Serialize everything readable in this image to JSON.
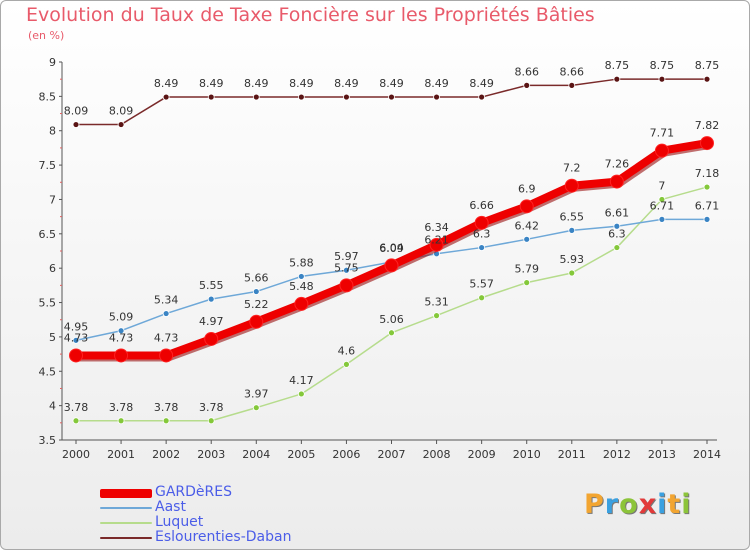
{
  "title": "Evolution du Taux de Taxe Foncière sur les Propriétés Bâties",
  "subtitle": "(en %)",
  "logo": {
    "text": "Proxiti",
    "letters": [
      {
        "ch": "P",
        "color": "#f2a531"
      },
      {
        "ch": "r",
        "color": "#3aa0e0"
      },
      {
        "ch": "o",
        "color": "#8cc43a"
      },
      {
        "ch": "x",
        "color": "#e23a3a"
      },
      {
        "ch": "i",
        "color": "#3aa0e0"
      },
      {
        "ch": "t",
        "color": "#f2a531"
      },
      {
        "ch": "i",
        "color": "#8cc43a"
      }
    ]
  },
  "chart_data": {
    "type": "line",
    "title": "Evolution du Taux de Taxe Foncière sur les Propriétés Bâties",
    "ylabel": "(en %)",
    "xlabel": "",
    "x": [
      2000,
      2001,
      2002,
      2003,
      2004,
      2005,
      2006,
      2007,
      2008,
      2009,
      2010,
      2011,
      2012,
      2013,
      2014
    ],
    "ylim": [
      3.5,
      9
    ],
    "yticks": [
      "3.5",
      "4",
      "4.5",
      "5",
      "5.5",
      "6",
      "6.5",
      "7",
      "7.5",
      "8",
      "8.5",
      "9"
    ],
    "grid": false,
    "legend_position": "bottom-left",
    "series": [
      {
        "name": "GARDèRES",
        "color": "#ee0000",
        "marker_color": "#ee0000",
        "width": 8,
        "labels_above": true,
        "values": [
          4.73,
          4.73,
          4.73,
          4.97,
          5.22,
          5.48,
          5.75,
          6.04,
          6.34,
          6.66,
          6.9,
          7.2,
          7.26,
          7.71,
          7.82
        ],
        "labels": [
          "4.73",
          "4.73",
          "4.73",
          "4.97",
          "5.22",
          "5.48",
          "5.75",
          "6.04",
          "6.34",
          "6.66",
          "6.9",
          "7.2",
          "7.26",
          "7.71",
          "7.82"
        ]
      },
      {
        "name": "Aast",
        "color": "#6ea8d8",
        "marker_color": "#3a84c4",
        "width": 1.5,
        "labels_above": true,
        "values": [
          4.95,
          5.09,
          5.34,
          5.55,
          5.66,
          5.88,
          5.97,
          6.09,
          6.21,
          6.3,
          6.42,
          6.55,
          6.61,
          6.71,
          6.71
        ],
        "labels": [
          "4.95",
          "5.09",
          "5.34",
          "5.55",
          "5.66",
          "5.88",
          "5.97",
          "6.09",
          "6.21",
          "6.3",
          "6.42",
          "6.55",
          "6.61",
          "6.71",
          "6.71"
        ]
      },
      {
        "name": "Luquet",
        "color": "#b6dc8c",
        "marker_color": "#84c83a",
        "width": 1.5,
        "labels_above": true,
        "values": [
          3.78,
          3.78,
          3.78,
          3.78,
          3.97,
          4.17,
          4.6,
          5.06,
          5.31,
          5.57,
          5.79,
          5.93,
          6.3,
          7.0,
          7.18
        ],
        "labels": [
          "3.78",
          "3.78",
          "3.78",
          "3.78",
          "3.97",
          "4.17",
          "4.6",
          "5.06",
          "5.31",
          "5.57",
          "5.79",
          "5.93",
          "6.3",
          "7",
          "7.18"
        ]
      },
      {
        "name": "Eslourenties-Daban",
        "color": "#7a2a2a",
        "marker_color": "#5a1414",
        "width": 1.5,
        "labels_above": true,
        "values": [
          8.09,
          8.09,
          8.49,
          8.49,
          8.49,
          8.49,
          8.49,
          8.49,
          8.49,
          8.49,
          8.66,
          8.66,
          8.75,
          8.75,
          8.75
        ],
        "labels": [
          "8.09",
          "8.09",
          "8.49",
          "8.49",
          "8.49",
          "8.49",
          "8.49",
          "8.49",
          "8.49",
          "8.49",
          "8.66",
          "8.66",
          "8.75",
          "8.75",
          "8.75"
        ]
      }
    ]
  }
}
